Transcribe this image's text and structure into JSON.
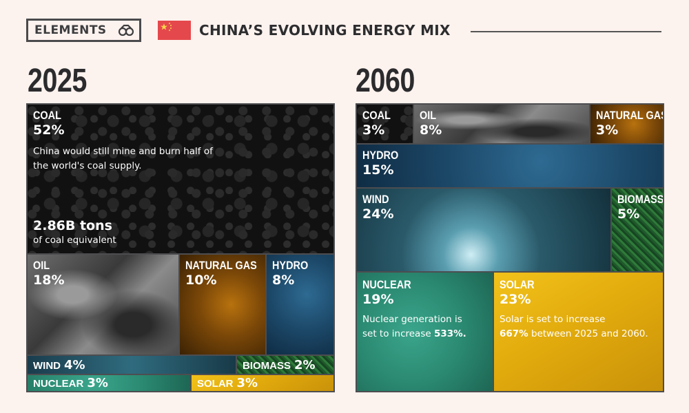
{
  "header": {
    "logo_label": "ELEMENTS",
    "logo_icon": "binoculars-icon",
    "flag_icon": "china-flag-icon",
    "title": "CHINA’S EVOLVING ENERGY MIX"
  },
  "panels": {
    "y2025": {
      "year": "2025",
      "coal": {
        "name": "COAL",
        "pct": "52%",
        "note": "China would still mine and burn half of the world's coal supply.",
        "amount": "2.86B tons",
        "amount_sub": "of coal equivalent"
      },
      "oil": {
        "name": "OIL",
        "pct": "18%"
      },
      "natural_gas": {
        "name": "NATURAL GAS",
        "pct": "10%"
      },
      "hydro": {
        "name": "HYDRO",
        "pct": "8%"
      },
      "wind": {
        "name": "WIND",
        "pct": "4%"
      },
      "biomass": {
        "name": "BIOMASS",
        "pct": "2%"
      },
      "nuclear": {
        "name": "NUCLEAR",
        "pct": "3%"
      },
      "solar": {
        "name": "SOLAR",
        "pct": "3%"
      }
    },
    "y2060": {
      "year": "2060",
      "coal": {
        "name": "COAL",
        "pct": "3%"
      },
      "oil": {
        "name": "OIL",
        "pct": "8%"
      },
      "natural_gas": {
        "name": "NATURAL GAS",
        "pct": "3%"
      },
      "hydro": {
        "name": "HYDRO",
        "pct": "15%"
      },
      "wind": {
        "name": "WIND",
        "pct": "24%"
      },
      "biomass": {
        "name": "BIOMASS",
        "pct": "5%"
      },
      "nuclear": {
        "name": "NUCLEAR",
        "pct": "19%",
        "note_a": "Nuclear generation is",
        "note_b": "set to increase",
        "note_bold": "533%."
      },
      "solar": {
        "name": "SOLAR",
        "pct": "23%",
        "note_a": "Solar is set to increase",
        "note_bold": "667%",
        "note_b": "between 2025 and 2060."
      }
    }
  },
  "chart_data": [
    {
      "type": "treemap",
      "title": "2025",
      "categories": [
        "Coal",
        "Oil",
        "Natural Gas",
        "Hydro",
        "Wind",
        "Biomass",
        "Nuclear",
        "Solar"
      ],
      "values": [
        52,
        18,
        10,
        8,
        4,
        2,
        3,
        3
      ],
      "colors": [
        "#111111",
        "#6d6d6d",
        "#8a5208",
        "#1c4868",
        "#2a5a6a",
        "#2f7a3a",
        "#2b8a72",
        "#e0a90c"
      ]
    },
    {
      "type": "treemap",
      "title": "2060",
      "categories": [
        "Coal",
        "Oil",
        "Natural Gas",
        "Hydro",
        "Wind",
        "Biomass",
        "Nuclear",
        "Solar"
      ],
      "values": [
        3,
        8,
        3,
        15,
        24,
        5,
        19,
        23
      ],
      "colors": [
        "#111111",
        "#6d6d6d",
        "#8a5208",
        "#1c4868",
        "#2a5a6a",
        "#2f7a3a",
        "#2b8a72",
        "#e0a90c"
      ]
    }
  ]
}
